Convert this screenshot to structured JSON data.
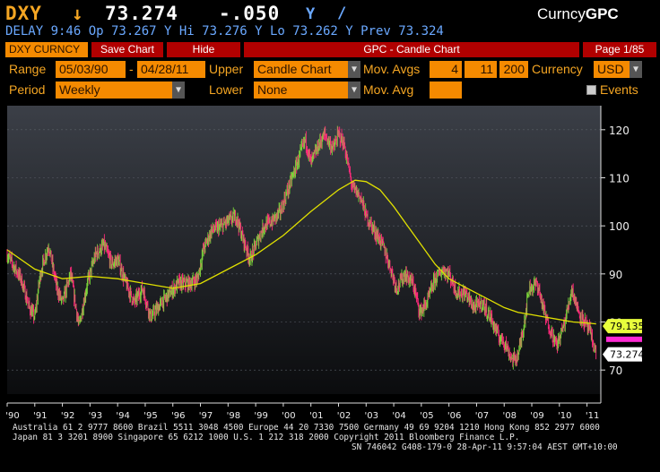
{
  "header": {
    "ticker": "DXY",
    "arrow": "↓",
    "last": "73.274",
    "change": "-.050",
    "currency_mark": "Y",
    "slash": "/",
    "market": "Curncy",
    "function": "GPC",
    "delay_line": "DELAY  9:46 Op 73.267 Y Hi 73.276 Y Lo 73.262 Y Prev 73.324"
  },
  "toolbar": {
    "security": "DXY CURNCY",
    "save_chart": "Save Chart",
    "hide": "Hide",
    "chart_title": "GPC - Candle Chart",
    "page": "Page 1/85"
  },
  "controls": {
    "range_label": "Range",
    "range_start": "05/03/90",
    "range_sep": "-",
    "range_end": "04/28/11",
    "upper_label": "Upper",
    "upper_value": "Candle Chart",
    "movavgs_label": "Mov. Avgs",
    "ma1": "4",
    "ma2": "11",
    "ma3": "200",
    "currency_label": "Currency",
    "currency_value": "USD",
    "period_label": "Period",
    "period_value": "Weekly",
    "lower_label": "Lower",
    "lower_value": "None",
    "movavg_label": "Mov. Avg",
    "movavg_value": "",
    "events_label": "Events",
    "dropdown_glyph": "▼"
  },
  "chart_data": {
    "type": "candlestick",
    "title": "",
    "xlabel": "",
    "ylabel": "",
    "ylim": [
      65,
      125
    ],
    "y_ticks": [
      70,
      80,
      90,
      100,
      110,
      120
    ],
    "x_ticks": [
      "'90",
      "'91",
      "'92",
      "'93",
      "'94",
      "'95",
      "'96",
      "'97",
      "'98",
      "'99",
      "'00",
      "'01",
      "'02",
      "'03",
      "'04",
      "'05",
      "'06",
      "'07",
      "'08",
      "'09",
      "'10",
      "'11"
    ],
    "x_tick_years": [
      1990,
      1991,
      1992,
      1993,
      1994,
      1995,
      1996,
      1997,
      1998,
      1999,
      2000,
      2001,
      2002,
      2003,
      2004,
      2005,
      2006,
      2007,
      2008,
      2009,
      2010,
      2011
    ],
    "x_range": [
      1990.0,
      2011.5
    ],
    "price_path": [
      [
        1990.0,
        94
      ],
      [
        1990.5,
        89
      ],
      [
        1990.8,
        83
      ],
      [
        1991.0,
        81
      ],
      [
        1991.2,
        90
      ],
      [
        1991.5,
        96
      ],
      [
        1991.8,
        87
      ],
      [
        1992.0,
        84
      ],
      [
        1992.3,
        90
      ],
      [
        1992.6,
        79
      ],
      [
        1992.9,
        88
      ],
      [
        1993.2,
        94
      ],
      [
        1993.5,
        96
      ],
      [
        1993.8,
        92
      ],
      [
        1994.0,
        93
      ],
      [
        1994.3,
        88
      ],
      [
        1994.6,
        84
      ],
      [
        1994.9,
        87
      ],
      [
        1995.0,
        85
      ],
      [
        1995.2,
        81
      ],
      [
        1995.6,
        84
      ],
      [
        1995.9,
        86
      ],
      [
        1996.2,
        88
      ],
      [
        1996.6,
        88
      ],
      [
        1996.9,
        89
      ],
      [
        1997.1,
        95
      ],
      [
        1997.4,
        99
      ],
      [
        1997.8,
        100
      ],
      [
        1998.0,
        101
      ],
      [
        1998.3,
        102
      ],
      [
        1998.5,
        98
      ],
      [
        1998.8,
        93
      ],
      [
        1999.0,
        96
      ],
      [
        1999.3,
        100
      ],
      [
        1999.6,
        101
      ],
      [
        1999.9,
        103
      ],
      [
        2000.2,
        108
      ],
      [
        2000.5,
        113
      ],
      [
        2000.8,
        118
      ],
      [
        2001.0,
        113
      ],
      [
        2001.3,
        117
      ],
      [
        2001.5,
        119
      ],
      [
        2001.8,
        116
      ],
      [
        2002.0,
        119
      ],
      [
        2002.2,
        117
      ],
      [
        2002.5,
        108
      ],
      [
        2002.8,
        106
      ],
      [
        2003.0,
        102
      ],
      [
        2003.3,
        99
      ],
      [
        2003.6,
        96
      ],
      [
        2003.9,
        91
      ],
      [
        2004.1,
        87
      ],
      [
        2004.4,
        90
      ],
      [
        2004.7,
        88
      ],
      [
        2004.95,
        82
      ],
      [
        2005.2,
        84
      ],
      [
        2005.5,
        89
      ],
      [
        2005.8,
        91
      ],
      [
        2006.0,
        90
      ],
      [
        2006.3,
        86
      ],
      [
        2006.6,
        86
      ],
      [
        2006.9,
        83
      ],
      [
        2007.2,
        84
      ],
      [
        2007.5,
        81
      ],
      [
        2007.8,
        77
      ],
      [
        2008.0,
        76
      ],
      [
        2008.3,
        72
      ],
      [
        2008.5,
        73
      ],
      [
        2008.7,
        79
      ],
      [
        2008.9,
        87
      ],
      [
        2009.2,
        88
      ],
      [
        2009.5,
        81
      ],
      [
        2009.9,
        75
      ],
      [
        2010.2,
        80
      ],
      [
        2010.45,
        87
      ],
      [
        2010.7,
        82
      ],
      [
        2010.9,
        80
      ],
      [
        2011.1,
        78
      ],
      [
        2011.33,
        73.3
      ]
    ],
    "moving_average_path": [
      [
        1990.0,
        95
      ],
      [
        1991.0,
        91
      ],
      [
        1992.0,
        89
      ],
      [
        1993.0,
        89.5
      ],
      [
        1994.0,
        89
      ],
      [
        1995.0,
        88
      ],
      [
        1996.0,
        87
      ],
      [
        1997.0,
        88
      ],
      [
        1998.0,
        91
      ],
      [
        1999.0,
        94
      ],
      [
        2000.0,
        98
      ],
      [
        2001.0,
        103
      ],
      [
        2002.0,
        107.5
      ],
      [
        2002.6,
        109.5
      ],
      [
        2003.0,
        109.2
      ],
      [
        2003.5,
        107.5
      ],
      [
        2004.0,
        104
      ],
      [
        2004.5,
        100
      ],
      [
        2005.0,
        96
      ],
      [
        2005.5,
        92
      ],
      [
        2006.0,
        89
      ],
      [
        2006.5,
        87.5
      ],
      [
        2007.0,
        86
      ],
      [
        2007.5,
        84.5
      ],
      [
        2008.0,
        83
      ],
      [
        2008.5,
        82
      ],
      [
        2009.0,
        81.5
      ],
      [
        2009.5,
        81
      ],
      [
        2010.0,
        80.5
      ],
      [
        2010.5,
        80
      ],
      [
        2011.0,
        79.8
      ],
      [
        2011.33,
        79.6
      ]
    ],
    "last_price_label": "73.274",
    "ma_label": "79.135",
    "colors": {
      "candle_up": "#7cd63a",
      "candle_down": "#ff2a7a",
      "moving_average": "#e0e000",
      "ma_tag": "#e8ff3c",
      "last_tag_marker": "#ff2ad4"
    }
  },
  "footer": {
    "line1": "Australia 61 2 9777 8600 Brazil 5511 3048 4500 Europe 44 20 7330 7500 Germany 49 69 9204 1210 Hong Kong 852 2977 6000",
    "line2": "Japan 81 3 3201 8900         Singapore 65 6212 1000         U.S. 1 212 318 2000         Copyright 2011 Bloomberg Finance L.P.",
    "line3": "SN 746042 G408-179-0 28-Apr-11   9:57:04 AEST GMT+10:00"
  }
}
